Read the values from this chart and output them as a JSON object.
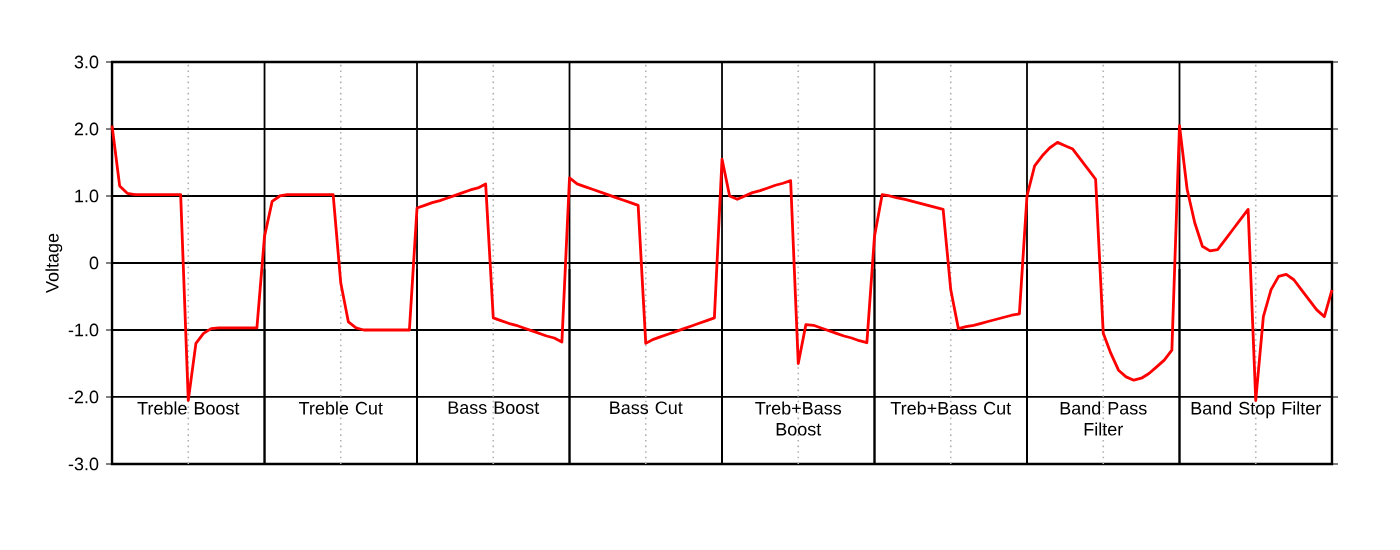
{
  "chart_data": {
    "type": "line",
    "ylabel": "Voltage",
    "annotations": [
      "Treble Boost",
      "Treble Cut",
      "Bass Boost",
      "Bass Cut",
      "Treb+Bass Boost",
      "Treb+Bass Cut",
      "Band Pass Filter",
      "Band Stop Filter"
    ],
    "categories": [
      null,
      null,
      null,
      null,
      null,
      null,
      null,
      null,
      null,
      null,
      null,
      null,
      null,
      null,
      null,
      null,
      null,
      null,
      null,
      null,
      null,
      null,
      null,
      null,
      null,
      null,
      null,
      null,
      null,
      null,
      null,
      null,
      null,
      null,
      null,
      null,
      null,
      null,
      null,
      null,
      null,
      null,
      null,
      null,
      null,
      null,
      null,
      null,
      null,
      null,
      null,
      null,
      null,
      null,
      null,
      null,
      null,
      null,
      null,
      null,
      null,
      null,
      null,
      null,
      null,
      null,
      null,
      null,
      null,
      null,
      null,
      null,
      null,
      null,
      null,
      null,
      null,
      null,
      null,
      null,
      null,
      null,
      null,
      null,
      null,
      null,
      null,
      null,
      null,
      null,
      null,
      null,
      null,
      null,
      null,
      null,
      null,
      null,
      null,
      null,
      null,
      null,
      null,
      null,
      null,
      null,
      null,
      null,
      null,
      null,
      null,
      null,
      null,
      null,
      null,
      null,
      null,
      null,
      null,
      null,
      null,
      null,
      null,
      null,
      null,
      null,
      null,
      null,
      null,
      null,
      null,
      null,
      null,
      null,
      null,
      null,
      null,
      null,
      null,
      null,
      null,
      null,
      null,
      null,
      null,
      null,
      null,
      null,
      null,
      null,
      null,
      null,
      null,
      null,
      null,
      null,
      null,
      null,
      null,
      null,
      null
    ],
    "ylim": [
      -3,
      3
    ],
    "yticks": [
      {
        "value": -3,
        "label": "-3.0"
      },
      {
        "value": -2,
        "label": "-2.0"
      },
      {
        "value": -1,
        "label": "-1.0"
      },
      {
        "value": 0,
        "label": "0"
      },
      {
        "value": 1,
        "label": "1.0"
      },
      {
        "value": 2,
        "label": "2.0"
      },
      {
        "value": 3,
        "label": "3.0"
      }
    ],
    "grid": true,
    "series": [
      {
        "color": "#ff0000",
        "values": [
          2.05,
          1.15,
          1.04,
          1.02,
          1.02,
          1.02,
          1.02,
          1.02,
          1.02,
          1.02,
          -2.05,
          -1.2,
          -1.05,
          -0.98,
          -0.97,
          -0.97,
          -0.97,
          -0.97,
          -0.97,
          -0.97,
          0.4,
          0.92,
          1.0,
          1.02,
          1.02,
          1.02,
          1.02,
          1.02,
          1.02,
          1.02,
          -0.3,
          -0.88,
          -0.97,
          -1.0,
          -1.0,
          -1.0,
          -1.0,
          -1.0,
          -1.0,
          -1.0,
          0.82,
          0.86,
          0.9,
          0.93,
          0.97,
          1.01,
          1.05,
          1.09,
          1.12,
          1.18,
          -0.82,
          -0.86,
          -0.9,
          -0.93,
          -0.97,
          -1.01,
          -1.05,
          -1.09,
          -1.12,
          -1.18,
          1.27,
          1.18,
          1.14,
          1.1,
          1.06,
          1.02,
          0.98,
          0.94,
          0.9,
          0.86,
          -1.2,
          -1.14,
          -1.1,
          -1.06,
          -1.02,
          -0.98,
          -0.94,
          -0.9,
          -0.86,
          -0.82,
          1.55,
          1.0,
          0.95,
          1.0,
          1.05,
          1.08,
          1.12,
          1.16,
          1.19,
          1.23,
          -1.5,
          -0.92,
          -0.93,
          -0.97,
          -1.01,
          -1.05,
          -1.09,
          -1.12,
          -1.16,
          -1.19,
          0.4,
          1.02,
          1.0,
          0.97,
          0.95,
          0.92,
          0.89,
          0.86,
          0.83,
          0.8,
          -0.4,
          -0.98,
          -0.95,
          -0.93,
          -0.9,
          -0.87,
          -0.84,
          -0.81,
          -0.78,
          -0.76,
          1.0,
          1.45,
          1.6,
          1.72,
          1.8,
          1.75,
          1.7,
          1.55,
          1.4,
          1.25,
          -1.05,
          -1.35,
          -1.6,
          -1.7,
          -1.75,
          -1.72,
          -1.65,
          -1.55,
          -1.45,
          -1.3,
          2.05,
          1.1,
          0.6,
          0.25,
          0.18,
          0.2,
          0.35,
          0.5,
          0.65,
          0.8,
          -2.05,
          -0.8,
          -0.4,
          -0.2,
          -0.17,
          -0.25,
          -0.4,
          -0.55,
          -0.7,
          -0.8,
          -0.4
        ]
      }
    ]
  }
}
